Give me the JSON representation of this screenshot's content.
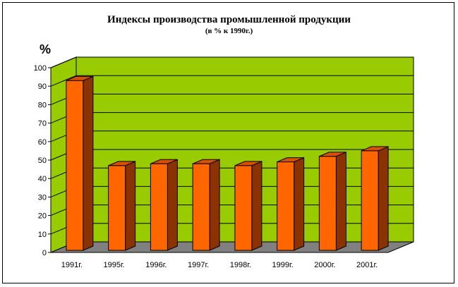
{
  "chart_data": {
    "type": "bar",
    "title": "Индексы производства промышленной продукции",
    "subtitle": "(в % к 1990г.)",
    "ylabel": "%",
    "xlabel": "",
    "categories": [
      "1991г.",
      "1995г.",
      "1996г.",
      "1997г.",
      "1998г.",
      "1999г.",
      "2000г.",
      "2001г."
    ],
    "values": [
      93,
      47,
      48,
      48,
      47,
      49,
      52,
      55
    ],
    "ylim": [
      0,
      100
    ],
    "yticks": [
      0,
      10,
      20,
      30,
      40,
      50,
      60,
      70,
      80,
      90,
      100
    ],
    "grid": true,
    "legend": "none",
    "colors": {
      "bar_front": "#ff6600",
      "bar_side": "#8a3300",
      "bar_top": "#d95000",
      "back_wall": "#99cc00",
      "side_wall": "#99cc00",
      "floor": "#808080",
      "gridline": "#000000"
    }
  }
}
